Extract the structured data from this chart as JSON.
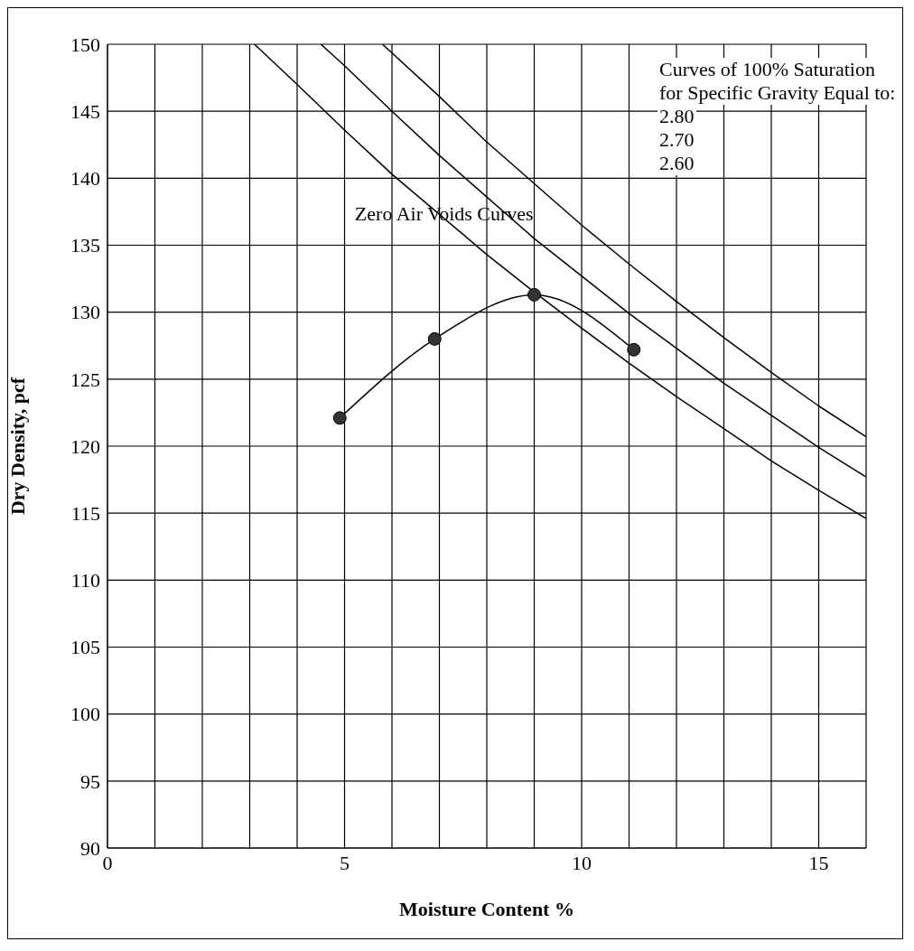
{
  "chart_data": {
    "type": "line",
    "xlabel": "Moisture Content %",
    "ylabel": "Dry Density, pcf",
    "xlim": [
      0,
      16
    ],
    "ylim": [
      90,
      150
    ],
    "xticks": [
      0,
      {
        "value": 1,
        "label": null
      },
      {
        "value": 2,
        "label": null
      },
      {
        "value": 3,
        "label": null
      },
      {
        "value": 4,
        "label": null
      },
      5,
      {
        "value": 6,
        "label": null
      },
      {
        "value": 7,
        "label": null
      },
      {
        "value": 8,
        "label": null
      },
      {
        "value": 9,
        "label": null
      },
      10,
      {
        "value": 11,
        "label": null
      },
      {
        "value": 12,
        "label": null
      },
      {
        "value": 13,
        "label": null
      },
      {
        "value": 14,
        "label": null
      },
      15,
      {
        "value": 16,
        "label": null
      }
    ],
    "yticks": [
      90,
      95,
      100,
      105,
      110,
      115,
      120,
      125,
      130,
      135,
      140,
      145,
      150
    ],
    "grid": true,
    "series": [
      {
        "color": "#000000",
        "marker": "circle",
        "x": [
          4.9,
          6.9,
          9.0,
          11.1
        ],
        "values": [
          122.1,
          128.0,
          131.3,
          127.2
        ]
      },
      {
        "color": "#000000",
        "marker": "none",
        "x": [
          5.8,
          7,
          8,
          9,
          10,
          11,
          12,
          13,
          14,
          15,
          16
        ],
        "values": [
          150,
          146.1,
          142.7,
          139.6,
          136.5,
          133.6,
          130.8,
          128.1,
          125.5,
          123.0,
          120.7
        ]
      },
      {
        "color": "#000000",
        "marker": "none",
        "x": [
          4.5,
          5,
          6,
          7,
          8,
          9,
          10,
          11,
          12,
          13,
          14,
          15,
          16
        ],
        "values": [
          150,
          148.4,
          145.0,
          141.7,
          138.6,
          135.5,
          132.7,
          129.9,
          127.3,
          124.7,
          122.3,
          119.9,
          117.7
        ]
      },
      {
        "color": "#000000",
        "marker": "none",
        "x": [
          3.1,
          4,
          5,
          6,
          7,
          8,
          9,
          10,
          11,
          12,
          13,
          14,
          15,
          16
        ],
        "values": [
          150,
          147.0,
          143.6,
          140.3,
          137.3,
          134.3,
          131.5,
          128.8,
          126.2,
          123.7,
          121.3,
          118.9,
          116.7,
          114.6
        ]
      }
    ],
    "annotations": [
      "Curves of 100% Saturation",
      "for Specific Gravity Equal to:",
      "2.80",
      "2.70",
      "2.60",
      {
        "text": "Zero Air Voids Curves",
        "x": 7.1,
        "y": 137.3
      }
    ]
  }
}
